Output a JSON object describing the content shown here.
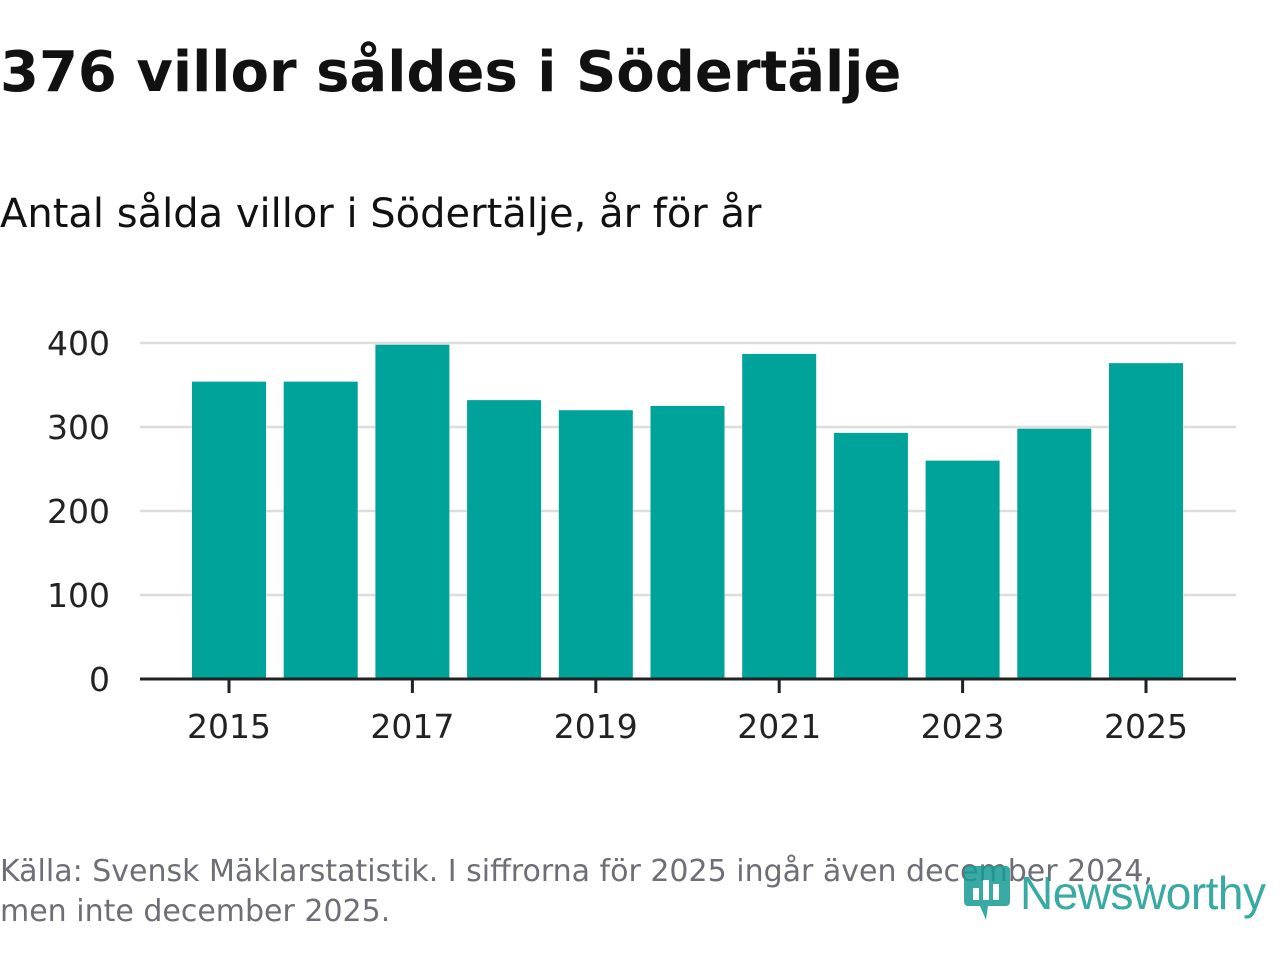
{
  "title": "376 villor såldes i Södertälje",
  "subtitle": "Antal sålda villor i Södertälje, år för år",
  "footer": {
    "source_line1": "Källa: Svensk Mäklarstatistik. I siffrorna för 2025 ingår även december 2024,",
    "source_line2": "men inte december 2025."
  },
  "logo": {
    "text": "Newsworthy",
    "icon": "newsworthy-logo-icon",
    "color": "#179c93"
  },
  "colors": {
    "bar": "#00a39a",
    "grid": "#dddddd",
    "axis": "#222222",
    "tick_text": "#222222"
  },
  "chart_data": {
    "type": "bar",
    "title": "Antal sålda villor i Södertälje, år för år",
    "xlabel": "",
    "ylabel": "",
    "categories": [
      "2015",
      "2016",
      "2017",
      "2018",
      "2019",
      "2020",
      "2021",
      "2022",
      "2023",
      "2024",
      "2025"
    ],
    "values": [
      354,
      354,
      398,
      332,
      320,
      325,
      387,
      293,
      260,
      298,
      376
    ],
    "x_tick_labels": [
      "2015",
      "2017",
      "2019",
      "2021",
      "2023",
      "2025"
    ],
    "y_ticks": [
      0,
      100,
      200,
      300,
      400
    ],
    "ylim": [
      0,
      400
    ],
    "grid": true,
    "legend": "none"
  }
}
